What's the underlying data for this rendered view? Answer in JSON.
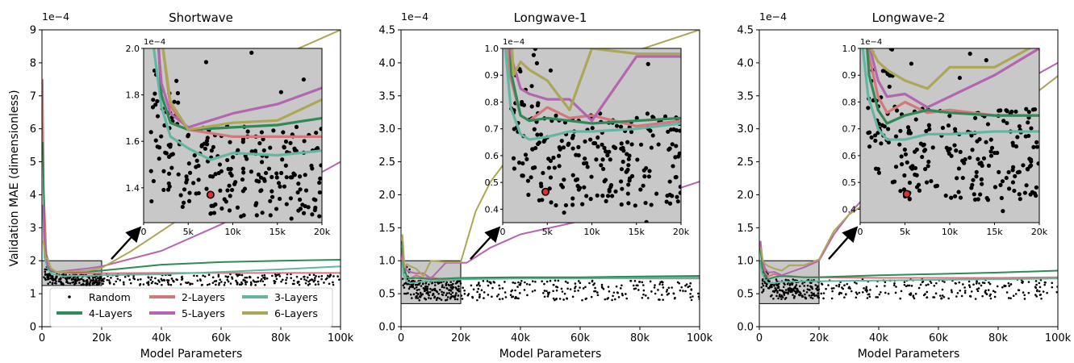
{
  "figure": {
    "ylabel": "Validation MAE (dimensionless)",
    "xlabel": "Model Parameters",
    "legend": {
      "placement": "lower-center",
      "entries": [
        {
          "label": "Random",
          "marker": "dot",
          "color": "#000000"
        },
        {
          "label": "2-Layers",
          "color": "#d4777c"
        },
        {
          "label": "3-Layers",
          "color": "#63b7a2"
        },
        {
          "label": "4-Layers",
          "color": "#2f8a57"
        },
        {
          "label": "5-Layers",
          "color": "#b565b0"
        },
        {
          "label": "6-Layers",
          "color": "#aba757"
        }
      ]
    }
  },
  "chart_data": [
    {
      "type": "line",
      "title": "Shortwave",
      "xlabel": "Model Parameters",
      "ylabel": "Validation MAE (dimensionless)",
      "xlim": [
        0,
        100000
      ],
      "ylim": [
        0,
        0.0009
      ],
      "x_ticks": [
        0,
        20000,
        40000,
        60000,
        80000,
        100000
      ],
      "x_tick_labels": [
        "0",
        "20k",
        "40k",
        "60k",
        "80k",
        "100k"
      ],
      "y_ticks": [
        0,
        0.0001,
        0.0002,
        0.0003,
        0.0004,
        0.0005,
        0.0006,
        0.0007,
        0.0008,
        0.0009
      ],
      "y_tick_labels": [
        "0",
        "1",
        "2",
        "3",
        "4",
        "5",
        "6",
        "7",
        "8",
        "9"
      ],
      "y_multiplier": "1e−4",
      "zoom_box": {
        "x": [
          0,
          20000
        ],
        "y": [
          0.000125,
          0.0002
        ]
      },
      "series": [
        {
          "name": "2-Layers",
          "color": "#d4777c",
          "x": [
            250,
            600,
            1500,
            3000,
            5000,
            10000,
            20000,
            40000,
            60000,
            80000,
            100000
          ],
          "y": [
            0.00075,
            0.00042,
            0.00022,
            0.000175,
            0.000165,
            0.000162,
            0.000162,
            0.000163,
            0.000163,
            0.000163,
            0.000163
          ]
        },
        {
          "name": "3-Layers",
          "color": "#63b7a2",
          "x": [
            300,
            800,
            2000,
            3000,
            5000,
            7500,
            10000,
            15000,
            20000,
            40000,
            60000,
            80000,
            100000
          ],
          "y": [
            0.00036,
            0.00021,
            0.000175,
            0.000162,
            0.000157,
            0.000152,
            0.000155,
            0.000154,
            0.000156,
            0.000159,
            0.000166,
            0.000174,
            0.000183
          ]
        },
        {
          "name": "4-Layers",
          "color": "#2f8a57",
          "x": [
            350,
            900,
            2000,
            3000,
            5000,
            10000,
            15000,
            20000,
            40000,
            60000,
            80000,
            100000
          ],
          "y": [
            0.00056,
            0.00025,
            0.00018,
            0.000168,
            0.000165,
            0.000166,
            0.000167,
            0.00017,
            0.000188,
            0.000196,
            0.0002,
            0.000203
          ]
        },
        {
          "name": "5-Layers",
          "color": "#b565b0",
          "x": [
            400,
            1000,
            2000,
            3000,
            5000,
            10000,
            15000,
            20000,
            40000,
            60000,
            80000,
            100000
          ],
          "y": [
            0.00037,
            0.00023,
            0.000185,
            0.000172,
            0.000166,
            0.000172,
            0.000176,
            0.000183,
            0.00023,
            0.00031,
            0.0004,
            0.0005
          ]
        },
        {
          "name": "6-Layers",
          "color": "#aba757",
          "x": [
            450,
            1100,
            2000,
            3000,
            5000,
            10000,
            15000,
            20000,
            30000,
            45000,
            60000,
            70000,
            80000,
            90000,
            100000
          ],
          "y": [
            0.00026,
            0.00021,
            0.000205,
            0.000177,
            0.000165,
            0.000168,
            0.000169,
            0.000178,
            0.00023,
            0.00032,
            0.0006,
            0.00072,
            0.00082,
            0.00086,
            0.0009
          ]
        }
      ],
      "random_points": {
        "count": 420,
        "x_range": [
          300,
          100000
        ],
        "y_band": [
          0.000126,
          0.00016
        ],
        "cluster_x": [
          1000,
          20000
        ]
      },
      "best_point": {
        "x": 7500,
        "y": 0.000137,
        "color": "#e03030"
      },
      "inset": {
        "xlim": [
          0,
          20000
        ],
        "ylim": [
          0.000125,
          0.0002
        ],
        "x_tick_labels": [
          "0",
          "5k",
          "10k",
          "15k",
          "20k"
        ],
        "y_ticks": [
          0.00014,
          0.00016,
          0.00018,
          0.0002
        ],
        "y_tick_labels": [
          "1.4",
          "1.6",
          "1.8",
          "2.0"
        ],
        "y_multiplier": "1e−4"
      }
    },
    {
      "type": "line",
      "title": "Longwave-1",
      "xlabel": "Model Parameters",
      "ylabel": "",
      "xlim": [
        0,
        100000
      ],
      "ylim": [
        0,
        0.00045
      ],
      "x_ticks": [
        0,
        20000,
        40000,
        60000,
        80000,
        100000
      ],
      "x_tick_labels": [
        "0",
        "20k",
        "40k",
        "60k",
        "80k",
        "100k"
      ],
      "y_ticks": [
        0,
        5e-05,
        0.0001,
        0.00015,
        0.0002,
        0.00025,
        0.0003,
        0.00035,
        0.0004,
        0.00045
      ],
      "y_tick_labels": [
        "0.0",
        "0.5",
        "1.0",
        "1.5",
        "2.0",
        "2.5",
        "3.0",
        "3.5",
        "4.0",
        "4.5"
      ],
      "y_multiplier": "1e−4",
      "zoom_box": {
        "x": [
          0,
          20000
        ],
        "y": [
          3.5e-05,
          0.0001
        ]
      },
      "series": [
        {
          "name": "2-Layers",
          "color": "#d4777c",
          "x": [
            250,
            800,
            2000,
            3000,
            5000,
            7500,
            10000,
            15000,
            20000,
            40000,
            60000,
            80000,
            100000
          ],
          "y": [
            0.00012,
            9e-05,
            7.5e-05,
            7.3e-05,
            7.8e-05,
            7.4e-05,
            7.5e-05,
            7.1e-05,
            7.3e-05,
            7.4e-05,
            7.4e-05,
            7.3e-05,
            7.3e-05
          ]
        },
        {
          "name": "3-Layers",
          "color": "#63b7a2",
          "x": [
            300,
            900,
            2000,
            3000,
            5000,
            7500,
            10000,
            15000,
            20000,
            40000,
            60000,
            80000,
            100000
          ],
          "y": [
            0.0001,
            7.8e-05,
            6.8e-05,
            6.6e-05,
            6.7e-05,
            6.9e-05,
            6.9e-05,
            7e-05,
            7.2e-05,
            7.3e-05,
            7.3e-05,
            7.4e-05,
            7.5e-05
          ]
        },
        {
          "name": "4-Layers",
          "color": "#2f8a57",
          "x": [
            350,
            1000,
            2000,
            3000,
            5000,
            7500,
            10000,
            15000,
            20000,
            40000,
            60000,
            80000,
            100000
          ],
          "y": [
            0.00013,
            9e-05,
            7.5e-05,
            7.3e-05,
            7.4e-05,
            7.3e-05,
            7.2e-05,
            7.3e-05,
            7.4e-05,
            7.5e-05,
            7.5e-05,
            7.6e-05,
            7.7e-05
          ]
        },
        {
          "name": "5-Layers",
          "color": "#b565b0",
          "x": [
            400,
            1100,
            2000,
            3000,
            5000,
            7500,
            10000,
            15000,
            20000,
            22000,
            30000,
            40000,
            60000,
            80000,
            100000
          ],
          "y": [
            0.00011,
            9.5e-05,
            8.5e-05,
            8.3e-05,
            8.1e-05,
            8.1e-05,
            7.3e-05,
            9.7e-05,
            9.7e-05,
            9.7e-05,
            0.00012,
            0.00014,
            0.00016,
            0.00019,
            0.00022
          ]
        },
        {
          "name": "6-Layers",
          "color": "#aba757",
          "x": [
            450,
            1200,
            2000,
            3000,
            5000,
            7500,
            10000,
            15000,
            20000,
            25000,
            30000,
            40000,
            60000,
            80000,
            100000
          ],
          "y": [
            0.00014,
            9e-05,
            9.5e-05,
            9.2e-05,
            8.8e-05,
            7.7e-05,
            0.0001,
            9.8e-05,
            9.8e-05,
            0.000175,
            0.00022,
            0.00028,
            0.00036,
            0.00042,
            0.00045
          ]
        }
      ],
      "random_points": {
        "count": 420,
        "x_range": [
          300,
          100000
        ],
        "y_band": [
          4e-05,
          7e-05
        ],
        "cluster_x": [
          1000,
          20000
        ]
      },
      "best_point": {
        "x": 4800,
        "y": 4.65e-05,
        "color": "#e03030"
      },
      "inset": {
        "xlim": [
          0,
          20000
        ],
        "ylim": [
          3.5e-05,
          0.0001
        ],
        "x_tick_labels": [
          "0",
          "5k",
          "10k",
          "15k",
          "20k"
        ],
        "y_ticks": [
          4e-05,
          5e-05,
          6e-05,
          7e-05,
          8e-05,
          9e-05,
          0.0001
        ],
        "y_tick_labels": [
          "0.4",
          "0.5",
          "0.6",
          "0.7",
          "0.8",
          "0.9",
          "1.0"
        ],
        "y_multiplier": "1e−4"
      }
    },
    {
      "type": "line",
      "title": "Longwave-2",
      "xlabel": "Model Parameters",
      "ylabel": "",
      "xlim": [
        0,
        100000
      ],
      "ylim": [
        0,
        0.00045
      ],
      "x_ticks": [
        0,
        20000,
        40000,
        60000,
        80000,
        100000
      ],
      "x_tick_labels": [
        "0",
        "20k",
        "40k",
        "60k",
        "80k",
        "100k"
      ],
      "y_ticks": [
        0,
        5e-05,
        0.0001,
        0.00015,
        0.0002,
        0.00025,
        0.0003,
        0.00035,
        0.0004,
        0.00045
      ],
      "y_tick_labels": [
        "0.0",
        "0.5",
        "1.0",
        "1.5",
        "2.0",
        "2.5",
        "3.0",
        "3.5",
        "4.0",
        "4.5"
      ],
      "y_multiplier": "1e−4",
      "zoom_box": {
        "x": [
          0,
          20000
        ],
        "y": [
          3.5e-05,
          0.0001
        ]
      },
      "series": [
        {
          "name": "2-Layers",
          "color": "#d4777c",
          "x": [
            250,
            800,
            2000,
            3000,
            5000,
            7500,
            10000,
            15000,
            20000,
            40000,
            60000,
            80000,
            100000
          ],
          "y": [
            0.00013,
            0.0001,
            8.2e-05,
            7.6e-05,
            8e-05,
            7.6e-05,
            7.7e-05,
            7.5e-05,
            7.5e-05,
            7.4e-05,
            7.4e-05,
            7.4e-05,
            7.5e-05
          ]
        },
        {
          "name": "3-Layers",
          "color": "#63b7a2",
          "x": [
            300,
            900,
            2000,
            3000,
            5000,
            7500,
            10000,
            15000,
            20000,
            40000,
            60000,
            80000,
            100000
          ],
          "y": [
            0.0001,
            8.2e-05,
            7e-05,
            6.6e-05,
            6.6e-05,
            6.8e-05,
            6.8e-05,
            6.9e-05,
            6.9e-05,
            7e-05,
            7.1e-05,
            7.2e-05,
            7.3e-05
          ]
        },
        {
          "name": "4-Layers",
          "color": "#2f8a57",
          "x": [
            350,
            1000,
            2000,
            3000,
            5000,
            7500,
            10000,
            15000,
            20000,
            40000,
            60000,
            80000,
            100000
          ],
          "y": [
            0.00012,
            9e-05,
            7.7e-05,
            7.2e-05,
            7.5e-05,
            7.7e-05,
            7.6e-05,
            7.5e-05,
            7.5e-05,
            7.8e-05,
            8e-05,
            8.2e-05,
            8.5e-05
          ]
        },
        {
          "name": "5-Layers",
          "color": "#b565b0",
          "x": [
            400,
            1100,
            2000,
            3000,
            5000,
            7500,
            10000,
            15000,
            20000,
            25000,
            30000,
            40000,
            60000,
            80000,
            100000
          ],
          "y": [
            0.00013,
            0.0001,
            8.8e-05,
            8.2e-05,
            8.3e-05,
            7.8e-05,
            8.2e-05,
            9e-05,
            0.0001,
            0.00014,
            0.00017,
            0.00022,
            0.00029,
            0.00035,
            0.0004
          ]
        },
        {
          "name": "6-Layers",
          "color": "#aba757",
          "x": [
            450,
            1200,
            2000,
            3000,
            5000,
            7500,
            10000,
            15000,
            20000,
            25000,
            30000,
            40000,
            60000,
            80000,
            100000
          ],
          "y": [
            0.00012,
            0.0001,
            9.5e-05,
            9.2e-05,
            8.8e-05,
            8.5e-05,
            9.3e-05,
            9.3e-05,
            0.000102,
            0.000145,
            0.00017,
            0.0002,
            0.00025,
            0.00031,
            0.00038
          ]
        }
      ],
      "random_points": {
        "count": 420,
        "x_range": [
          300,
          100000
        ],
        "y_band": [
          4.2e-05,
          7.2e-05
        ],
        "cluster_x": [
          1000,
          20000
        ]
      },
      "best_point": {
        "x": 5200,
        "y": 4.57e-05,
        "color": "#e03030"
      },
      "inset": {
        "xlim": [
          0,
          20000
        ],
        "ylim": [
          3.5e-05,
          0.0001
        ],
        "x_tick_labels": [
          "0",
          "5k",
          "10k",
          "15k",
          "20k"
        ],
        "y_ticks": [
          4e-05,
          5e-05,
          6e-05,
          7e-05,
          8e-05,
          9e-05,
          0.0001
        ],
        "y_tick_labels": [
          "0.4",
          "0.5",
          "0.6",
          "0.7",
          "0.8",
          "0.9",
          "1.0"
        ],
        "y_multiplier": "1e−4"
      }
    }
  ]
}
